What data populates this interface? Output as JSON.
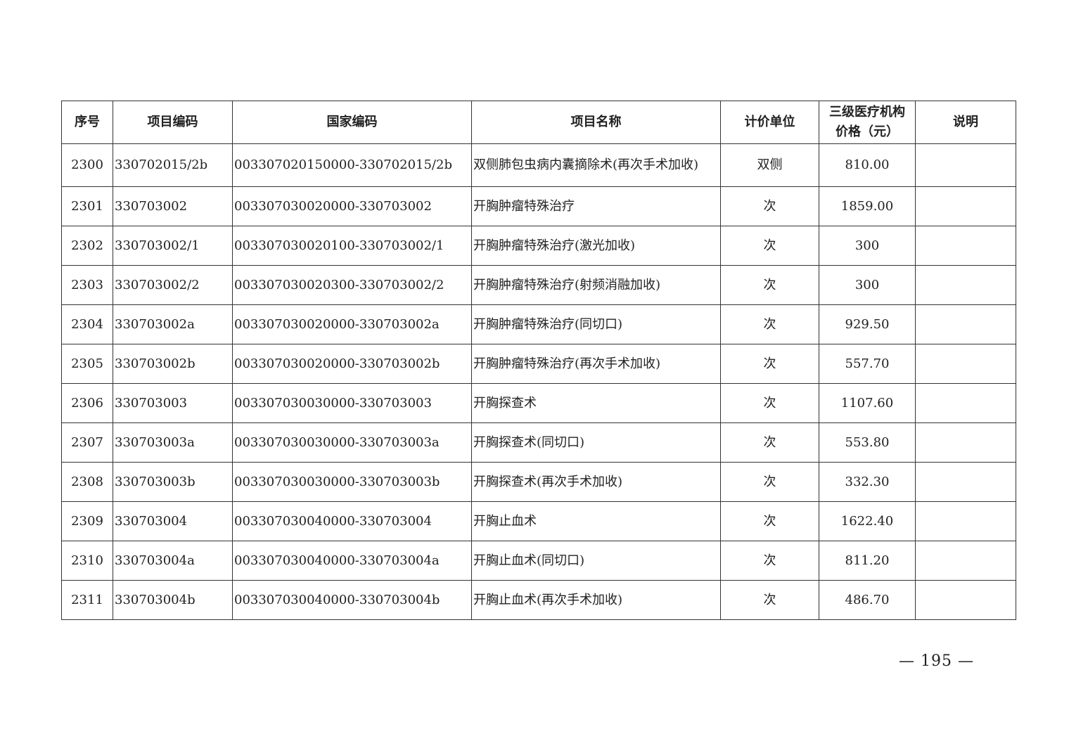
{
  "table": {
    "headers": [
      "序号",
      "项目编码",
      "国家编码",
      "项目名称",
      "计价单位",
      "三级医疗机构\n价格（元）",
      "说明"
    ],
    "rows": [
      [
        "2300",
        "330702015/2b",
        "003307020150000-330702015/2b",
        "双侧肺包虫病内囊摘除术(再次手术加收)",
        "双侧",
        "810.00",
        ""
      ],
      [
        "2301",
        "330703002",
        "003307030020000-330703002",
        "开胸肿瘤特殊治疗",
        "次",
        "1859.00",
        ""
      ],
      [
        "2302",
        "330703002/1",
        "003307030020100-330703002/1",
        "开胸肿瘤特殊治疗(激光加收)",
        "次",
        "300",
        ""
      ],
      [
        "2303",
        "330703002/2",
        "003307030020300-330703002/2",
        "开胸肿瘤特殊治疗(射频消融加收)",
        "次",
        "300",
        ""
      ],
      [
        "2304",
        "330703002a",
        "003307030020000-330703002a",
        "开胸肿瘤特殊治疗(同切口)",
        "次",
        "929.50",
        ""
      ],
      [
        "2305",
        "330703002b",
        "003307030020000-330703002b",
        "开胸肿瘤特殊治疗(再次手术加收)",
        "次",
        "557.70",
        ""
      ],
      [
        "2306",
        "330703003",
        "003307030030000-330703003",
        "开胸探查术",
        "次",
        "1107.60",
        ""
      ],
      [
        "2307",
        "330703003a",
        "003307030030000-330703003a",
        "开胸探查术(同切口)",
        "次",
        "553.80",
        ""
      ],
      [
        "2308",
        "330703003b",
        "003307030030000-330703003b",
        "开胸探查术(再次手术加收)",
        "次",
        "332.30",
        ""
      ],
      [
        "2309",
        "330703004",
        "003307030040000-330703004",
        "开胸止血术",
        "次",
        "1622.40",
        ""
      ],
      [
        "2310",
        "330703004a",
        "003307030040000-330703004a",
        "开胸止血术(同切口)",
        "次",
        "811.20",
        ""
      ],
      [
        "2311",
        "330703004b",
        "003307030040000-330703004b",
        "开胸止血术(再次手术加收)",
        "次",
        "486.70",
        ""
      ]
    ]
  },
  "page_number": "— 195 —"
}
